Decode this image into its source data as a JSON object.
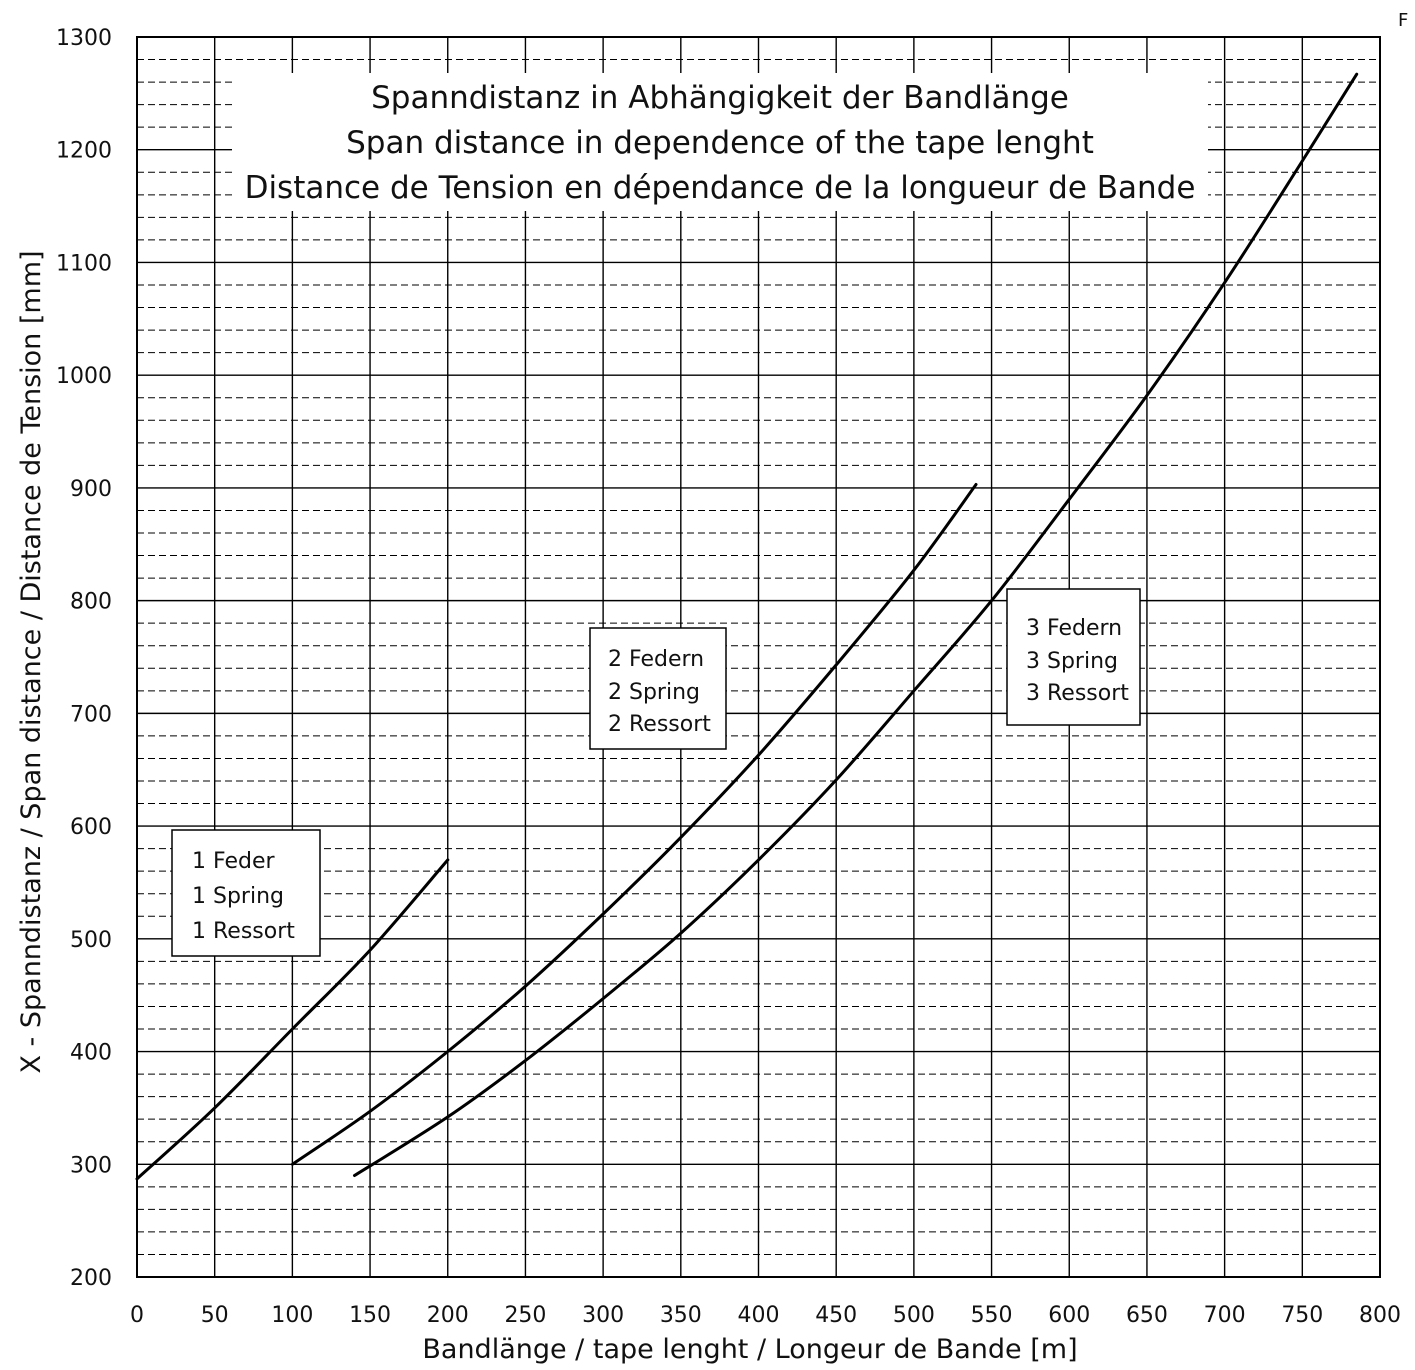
{
  "corner_text": "F",
  "chart_data": {
    "type": "line",
    "title": [
      "Spanndistanz in Abhängigkeit der Bandlänge",
      "Span distance in dependence of the tape lenght",
      "Distance de Tension en dépendance de la longueur de Bande"
    ],
    "xlabel": "Bandlänge / tape lenght / Longeur de Bande [m]",
    "ylabel": "X - Spanndistanz / Span distance / Distance de Tension [mm]",
    "xlim": [
      0,
      800
    ],
    "ylim": [
      200,
      1300
    ],
    "x_ticks": [
      0,
      50,
      100,
      150,
      200,
      250,
      300,
      350,
      400,
      450,
      500,
      550,
      600,
      650,
      700,
      750,
      800
    ],
    "y_ticks": [
      200,
      300,
      400,
      500,
      600,
      700,
      800,
      900,
      1000,
      1100,
      1200,
      1300
    ],
    "grid": true,
    "series": [
      {
        "label": [
          "1 Feder",
          "1 Spring",
          "1 Ressort"
        ],
        "x": [
          0,
          50,
          100,
          150,
          200
        ],
        "y": [
          287,
          350,
          420,
          490,
          570
        ]
      },
      {
        "label": [
          "2 Federn",
          "2 Spring",
          "2 Ressort"
        ],
        "x": [
          100,
          150,
          200,
          250,
          300,
          350,
          400,
          450,
          500,
          540
        ],
        "y": [
          300,
          347,
          400,
          458,
          522,
          590,
          663,
          743,
          827,
          903
        ]
      },
      {
        "label": [
          "3 Federn",
          "3 Spring",
          "3 Ressort"
        ],
        "x": [
          140,
          200,
          250,
          300,
          350,
          400,
          450,
          500,
          550,
          600,
          650,
          700,
          750,
          785
        ],
        "y": [
          290,
          342,
          392,
          447,
          505,
          570,
          641,
          720,
          800,
          890,
          982,
          1082,
          1190,
          1267
        ]
      }
    ]
  }
}
